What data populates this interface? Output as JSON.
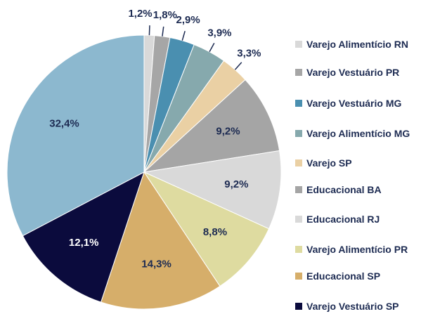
{
  "chart_data": {
    "type": "pie",
    "categories": [
      "Varejo Alimentício RN",
      "Varejo Vestuário PR",
      "Varejo Vestuário MG",
      "Varejo Alimentício MG",
      "Varejo SP",
      "Educacional BA",
      "Educacional RJ",
      "Varejo Alimentício PR",
      "Educacional SP",
      "Varejo Vestuário SP",
      null
    ],
    "values": [
      1.2,
      1.8,
      2.9,
      3.9,
      3.3,
      9.2,
      9.2,
      8.8,
      14.3,
      12.1,
      32.4
    ],
    "value_labels": [
      "1,2%",
      "1,8%",
      "2,9%",
      "3,9%",
      "3,3%",
      "9,2%",
      "9,2%",
      "8,8%",
      "14,3%",
      "12,1%",
      "32,4%"
    ],
    "colors": [
      "#d9d9d9",
      "#a6a6a6",
      "#4a8fb0",
      "#86a9ad",
      "#ead0a4",
      "#a5a5a5",
      "#d9d9d9",
      "#dedba0",
      "#d6ae6a",
      "#0b0b3d",
      "#8cb8cf"
    ],
    "legend": "right"
  }
}
